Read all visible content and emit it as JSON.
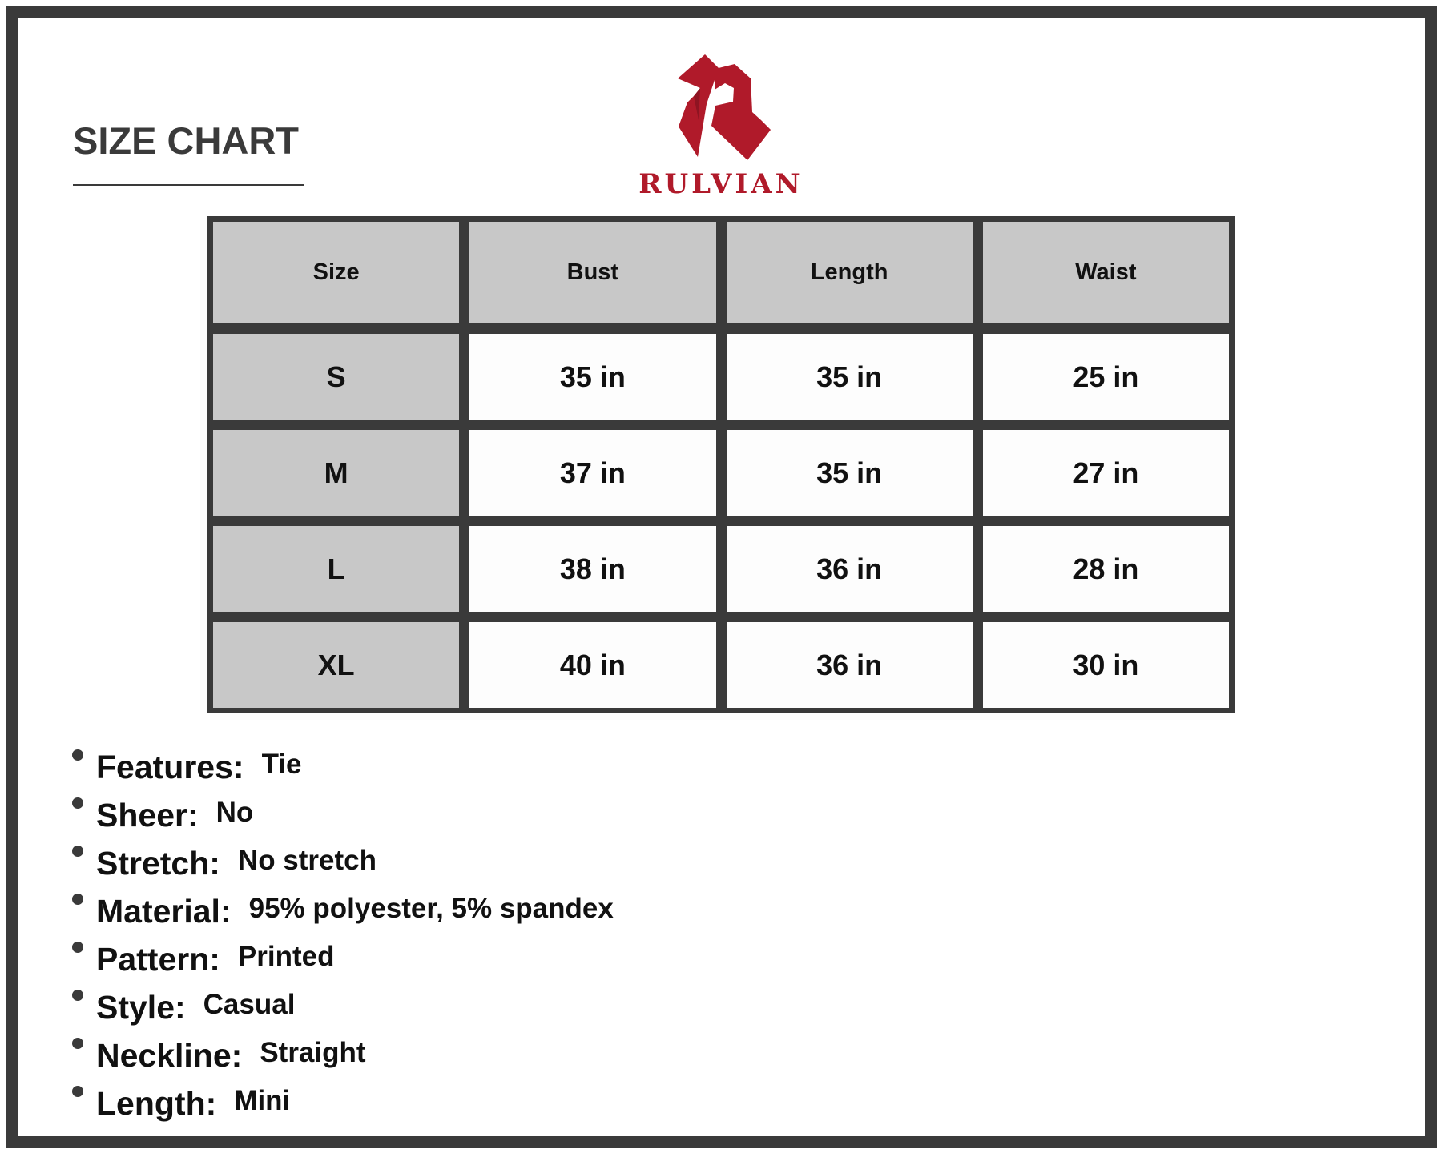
{
  "title": "SIZE CHART",
  "brand": {
    "name": "RULVIAN",
    "color": "#b01a2a"
  },
  "table": {
    "headers": [
      "Size",
      "Bust",
      "Length",
      "Waist"
    ],
    "rows": [
      [
        "S",
        "35 in",
        "35 in",
        "25 in"
      ],
      [
        "M",
        "37 in",
        "35 in",
        "27 in"
      ],
      [
        "L",
        "38 in",
        "36 in",
        "28 in"
      ],
      [
        "XL",
        "40 in",
        "36 in",
        "30 in"
      ]
    ]
  },
  "properties": [
    {
      "label": "Features:",
      "value": "Tie"
    },
    {
      "label": "Sheer:",
      "value": "No"
    },
    {
      "label": "Stretch:",
      "value": "No stretch"
    },
    {
      "label": "Material:",
      "value": "95% polyester, 5% spandex"
    },
    {
      "label": "Pattern:",
      "value": "Printed"
    },
    {
      "label": "Style:",
      "value": "Casual"
    },
    {
      "label": "Neckline:",
      "value": "Straight"
    },
    {
      "label": "Length:",
      "value": "Mini"
    }
  ]
}
